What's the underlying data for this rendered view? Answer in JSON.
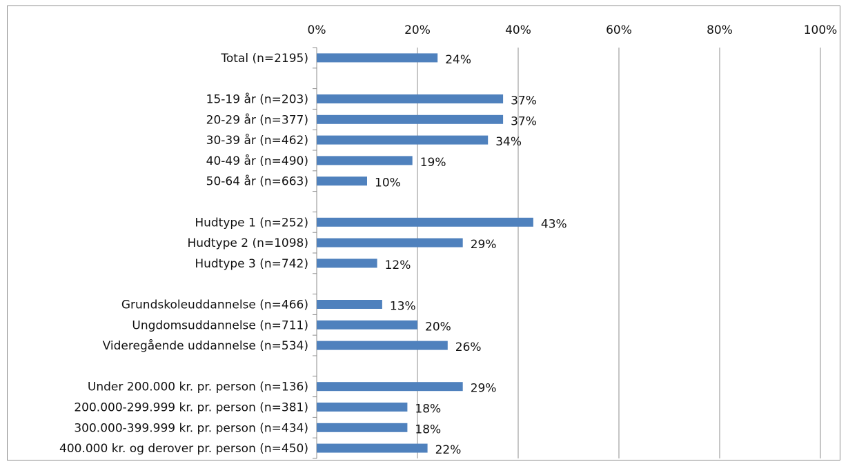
{
  "chart_data": {
    "type": "bar",
    "orientation": "horizontal",
    "title": "",
    "xlabel": "",
    "ylabel": "",
    "xlim": [
      0,
      100
    ],
    "x_ticks": [
      {
        "value": 0,
        "label": "0%"
      },
      {
        "value": 20,
        "label": "20%"
      },
      {
        "value": 40,
        "label": "40%"
      },
      {
        "value": 60,
        "label": "60%"
      },
      {
        "value": 80,
        "label": "80%"
      },
      {
        "value": 100,
        "label": "100%"
      }
    ],
    "tick_position": "top",
    "grid": true,
    "bar_color": "#4f81bd",
    "categories": [
      "Total (n=2195)",
      "",
      "15-19 år (n=203)",
      "20-29 år (n=377)",
      "30-39 år (n=462)",
      "40-49 år (n=490)",
      "50-64 år (n=663)",
      "",
      "Hudtype 1 (n=252)",
      "Hudtype 2 (n=1098)",
      "Hudtype 3 (n=742)",
      "",
      "Grundskoleuddannelse (n=466)",
      "Ungdomsuddannelse (n=711)",
      "Videregående uddannelse (n=534)",
      "",
      "Under 200.000 kr. pr. person (n=136)",
      "200.000-299.999 kr. pr. person (n=381)",
      "300.000-399.999 kr. pr. person (n=434)",
      "400.000 kr. og derover pr. person (n=450)"
    ],
    "values": [
      24,
      null,
      37,
      37,
      34,
      19,
      10,
      null,
      43,
      29,
      12,
      null,
      13,
      20,
      26,
      null,
      29,
      18,
      18,
      22
    ],
    "data_labels": [
      "24%",
      "",
      "37%",
      "37%",
      "34%",
      "19%",
      "10%",
      "",
      "43%",
      "29%",
      "12%",
      "",
      "13%",
      "20%",
      "26%",
      "",
      "29%",
      "18%",
      "18%",
      "22%"
    ]
  }
}
